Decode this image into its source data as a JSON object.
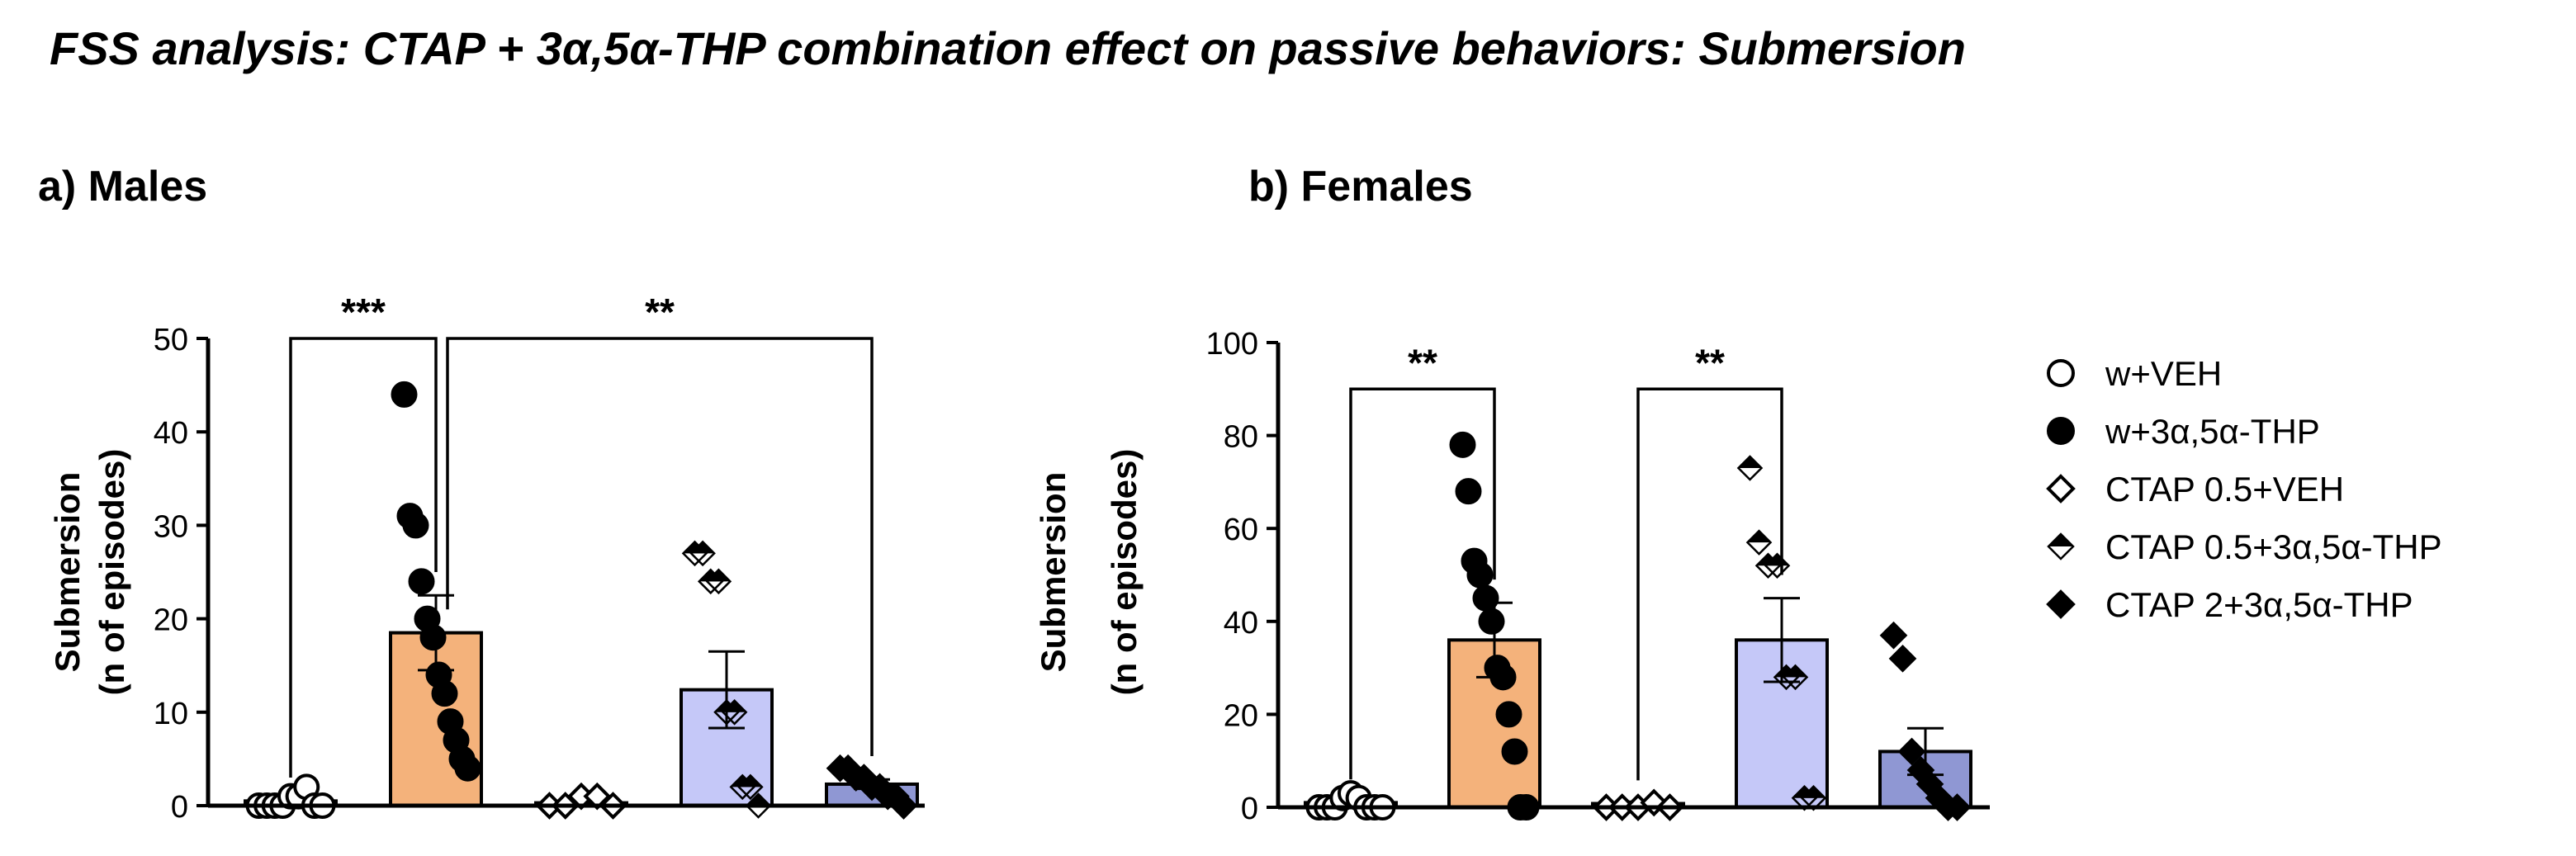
{
  "title": "FSS analysis: CTAP + 3α,5α-THP combination effect on passive behaviors: Submersion",
  "legend": [
    {
      "label": "w+VEH",
      "marker": "circle-open"
    },
    {
      "label": "w+3α,5α-THP",
      "marker": "circle-filled"
    },
    {
      "label": "CTAP 0.5+VEH",
      "marker": "diamond-open"
    },
    {
      "label": "CTAP 0.5+3α,5α-THP",
      "marker": "diamond-half"
    },
    {
      "label": "CTAP 2+3α,5α-THP",
      "marker": "diamond-filled"
    }
  ],
  "colors": {
    "w_3a5a_thp": "#f4b27b",
    "ctap05_3a5a_thp": "#c5c8f8",
    "ctap2_3a5a_thp": "#8f97d3",
    "axis": "#000000"
  },
  "chart_data": [
    {
      "type": "bar",
      "panel_label": "a) Males",
      "ylabel_line1": "Submersion",
      "ylabel_line2": "(n of episodes)",
      "ylim": [
        0,
        50
      ],
      "yticks": [
        0,
        10,
        20,
        30,
        40,
        50
      ],
      "categories": [
        "w+VEH",
        "w+3α,5α-THP",
        "CTAP 0.5+VEH",
        "CTAP 0.5+3α,5α-THP",
        "CTAP 2+3α,5α-THP"
      ],
      "values": [
        0.5,
        18.5,
        0.3,
        12.4,
        2.3
      ],
      "sem": [
        0.3,
        4.0,
        0.2,
        4.1,
        0.5
      ],
      "points": [
        [
          0,
          0,
          0,
          0,
          1,
          1,
          2,
          0,
          0
        ],
        [
          44,
          31,
          30,
          24,
          20,
          18,
          14,
          12,
          9,
          7,
          5,
          4
        ],
        [
          0,
          0,
          1,
          1,
          0
        ],
        [
          27,
          27,
          24,
          24,
          10,
          10,
          2,
          2,
          0
        ],
        [
          4,
          4,
          3,
          3,
          2,
          2,
          1,
          1,
          0
        ]
      ],
      "significance": [
        {
          "from": 0,
          "to": 1,
          "label": "***",
          "value": 50
        },
        {
          "from": 1,
          "to": 4,
          "label": "**",
          "value": 50
        }
      ]
    },
    {
      "type": "bar",
      "panel_label": "b) Females",
      "ylabel_line1": "Submersion",
      "ylabel_line2": "(n of episodes)",
      "ylim": [
        0,
        100
      ],
      "yticks": [
        0,
        20,
        40,
        60,
        80,
        100
      ],
      "categories": [
        "w+VEH",
        "w+3α,5α-THP",
        "CTAP 0.5+VEH",
        "CTAP 0.5+3α,5α-THP",
        "CTAP 2+3α,5α-THP"
      ],
      "values": [
        1.0,
        36.0,
        0.8,
        36.0,
        12.0
      ],
      "sem": [
        0.5,
        8.0,
        0.4,
        9.0,
        5.0
      ],
      "points": [
        [
          0,
          0,
          0,
          2,
          3,
          2,
          0,
          0,
          0
        ],
        [
          78,
          68,
          53,
          50,
          45,
          40,
          30,
          28,
          20,
          12,
          0,
          0
        ],
        [
          0,
          0,
          0,
          1,
          0
        ],
        [
          73,
          57,
          52,
          52,
          28,
          28,
          2,
          2
        ],
        [
          37,
          32,
          12,
          8,
          5,
          2,
          0,
          0
        ]
      ],
      "significance": [
        {
          "from": 0,
          "to": 1,
          "label": "**",
          "value": 90
        },
        {
          "from": 2,
          "to": 3,
          "label": "**",
          "value": 90
        }
      ]
    }
  ]
}
